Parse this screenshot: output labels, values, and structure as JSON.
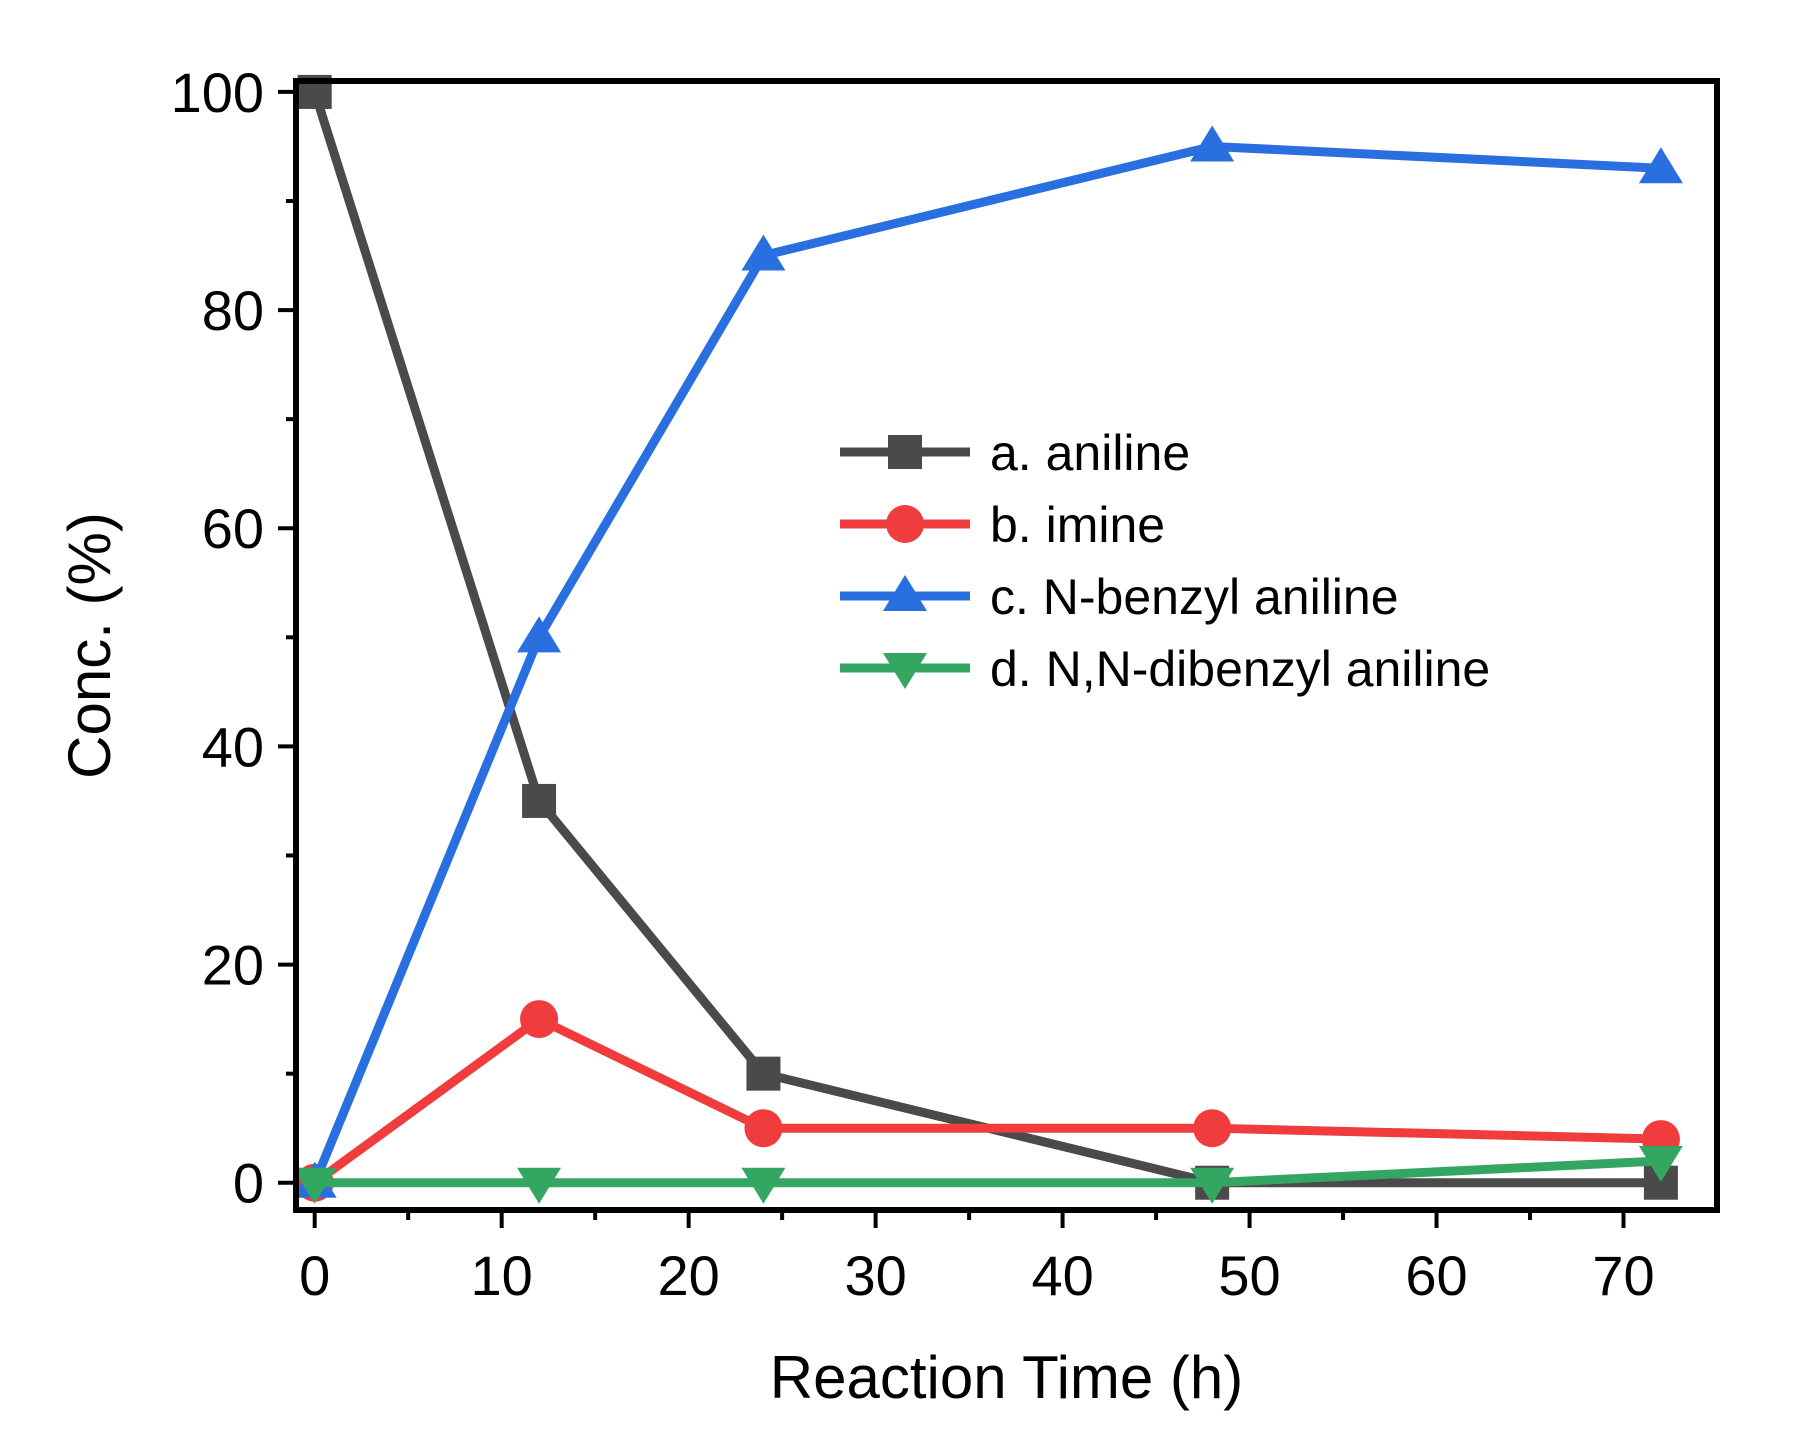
{
  "chart_data": {
    "type": "line",
    "title": "",
    "xlabel": "Reaction  Time (h)",
    "ylabel": "Conc. (%)",
    "xlim": [
      -1,
      75
    ],
    "ylim": [
      -2.5,
      101
    ],
    "x_major_ticks": [
      0,
      10,
      20,
      30,
      40,
      50,
      60,
      70
    ],
    "x_minor_ticks": [
      5,
      15,
      25,
      35,
      45,
      55,
      65
    ],
    "y_major_ticks": [
      0,
      20,
      40,
      60,
      80,
      100
    ],
    "y_minor_ticks": [
      10,
      30,
      50,
      70,
      90
    ],
    "x_tick_labels": [
      "0",
      "10",
      "20",
      "30",
      "40",
      "50",
      "60",
      "70"
    ],
    "y_tick_labels": [
      "0",
      "20",
      "40",
      "60",
      "80",
      "100"
    ],
    "grid": false,
    "legend_position": "center-right",
    "series": [
      {
        "name": "a. aniline",
        "marker": "square",
        "color": "#4a4a4a",
        "x": [
          0,
          12,
          24,
          48,
          72
        ],
        "values": [
          100,
          35,
          10,
          0,
          0
        ]
      },
      {
        "name": "b. imine",
        "marker": "circle",
        "color": "#f03c3c",
        "x": [
          0,
          12,
          24,
          48,
          72
        ],
        "values": [
          0,
          15,
          5,
          5,
          4
        ]
      },
      {
        "name": "c. N-benzyl aniline",
        "marker": "triangle-up",
        "color": "#2a6fe0",
        "x": [
          0,
          12,
          24,
          48,
          72
        ],
        "values": [
          0,
          50,
          85,
          95,
          93
        ]
      },
      {
        "name": "d. N,N-dibenzyl aniline",
        "marker": "triangle-down",
        "color": "#33a661",
        "x": [
          0,
          12,
          24,
          48,
          72
        ],
        "values": [
          0,
          0,
          0,
          0,
          2
        ]
      }
    ]
  }
}
